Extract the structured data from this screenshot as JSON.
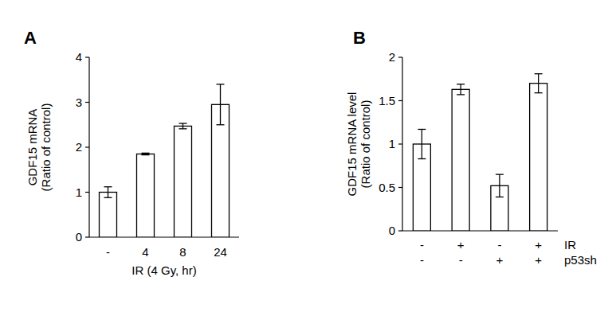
{
  "chart_data": [
    {
      "type": "bar",
      "title": "A",
      "categories": [
        "-",
        "4",
        "8",
        "24"
      ],
      "x_label": "IR (4 Gy, hr)",
      "y_label": [
        "GDF15 mRNA",
        "(Ratio of control)"
      ],
      "values": [
        1.0,
        1.85,
        2.47,
        2.95
      ],
      "errors": [
        0.12,
        0.02,
        0.06,
        0.45
      ],
      "color": "#ffffff",
      "ylim": [
        0,
        4
      ],
      "yticks": [
        0,
        1,
        2,
        3,
        4
      ]
    },
    {
      "type": "bar",
      "title": "B",
      "factors": [
        {
          "name": "IR",
          "levels": [
            "-",
            "+",
            "-",
            "+"
          ]
        },
        {
          "name": "p53sh",
          "levels": [
            "-",
            "-",
            "+",
            "+"
          ]
        }
      ],
      "y_label": [
        "GDF15 mRNA level",
        "(Ratio of control)"
      ],
      "values": [
        1.0,
        1.63,
        0.52,
        1.7
      ],
      "errors": [
        0.17,
        0.06,
        0.13,
        0.11
      ],
      "color": "#ffffff",
      "ylim": [
        0,
        2
      ],
      "yticks": [
        0,
        0.5,
        1,
        1.5,
        2
      ]
    }
  ]
}
